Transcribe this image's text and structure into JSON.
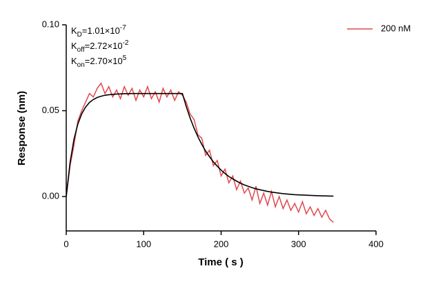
{
  "chart_data": {
    "type": "line",
    "xlabel": "Time ( s )",
    "ylabel": "Response (nm)",
    "annotations": [
      {
        "text": "K",
        "sub": "D",
        "mid": "=1.01×10",
        "sup": "-7"
      },
      {
        "text": "K",
        "sub": "off",
        "mid": "=2.72×10",
        "sup": "-2"
      },
      {
        "text": "K",
        "sub": "on",
        "mid": "=2.70×10",
        "sup": "5"
      }
    ],
    "x": [
      0,
      5,
      10,
      15,
      20,
      25,
      30,
      35,
      40,
      45,
      50,
      55,
      60,
      65,
      70,
      75,
      80,
      85,
      90,
      95,
      100,
      105,
      110,
      115,
      120,
      125,
      130,
      135,
      140,
      145,
      150,
      155,
      160,
      165,
      170,
      175,
      180,
      185,
      190,
      195,
      200,
      205,
      210,
      215,
      220,
      225,
      230,
      235,
      240,
      245,
      250,
      255,
      260,
      265,
      270,
      275,
      280,
      285,
      290,
      295,
      300,
      305,
      310,
      315,
      320,
      325,
      330,
      335,
      340,
      345
    ],
    "series": [
      {
        "name": "200 nM",
        "color": "#e0474c",
        "values": [
          0.0,
          0.018,
          0.03,
          0.044,
          0.05,
          0.055,
          0.06,
          0.058,
          0.063,
          0.066,
          0.06,
          0.064,
          0.058,
          0.062,
          0.057,
          0.064,
          0.059,
          0.063,
          0.056,
          0.062,
          0.058,
          0.064,
          0.057,
          0.061,
          0.055,
          0.063,
          0.058,
          0.062,
          0.056,
          0.061,
          0.059,
          0.055,
          0.048,
          0.045,
          0.036,
          0.034,
          0.024,
          0.027,
          0.018,
          0.021,
          0.012,
          0.016,
          0.008,
          0.012,
          0.004,
          0.009,
          0.002,
          0.005,
          -0.002,
          0.006,
          -0.004,
          0.002,
          -0.005,
          0.003,
          -0.006,
          0.0,
          -0.007,
          -0.002,
          -0.008,
          -0.004,
          -0.009,
          -0.003,
          -0.01,
          -0.006,
          -0.011,
          -0.007,
          -0.012,
          -0.008,
          -0.013,
          -0.015
        ]
      },
      {
        "color": "#000000",
        "values": [
          0,
          0.02,
          0.0334,
          0.0422,
          0.0482,
          0.0521,
          0.0548,
          0.0565,
          0.0577,
          0.0584,
          0.059,
          0.0593,
          0.0595,
          0.0597,
          0.0598,
          0.0599,
          0.0599,
          0.06,
          0.06,
          0.06,
          0.06,
          0.06,
          0.06,
          0.06,
          0.06,
          0.06,
          0.06,
          0.06,
          0.06,
          0.06,
          0.06,
          0.0524,
          0.0457,
          0.0399,
          0.0348,
          0.0304,
          0.0265,
          0.0232,
          0.0202,
          0.0177,
          0.0154,
          0.0134,
          0.0117,
          0.0103,
          0.009,
          0.0078,
          0.0068,
          0.006,
          0.0052,
          0.0045,
          0.004,
          0.0035,
          0.003,
          0.0026,
          0.0023,
          0.002,
          0.0017,
          0.0015,
          0.0013,
          0.0011,
          0.001,
          0.0009,
          0.0008,
          0.0007,
          0.0006,
          0.0005,
          0.0004,
          0.0004,
          0.0003,
          0.0003
        ]
      }
    ],
    "xlim": [
      0,
      400
    ],
    "xticks": [
      0,
      100,
      200,
      300,
      400
    ],
    "ylim": [
      -0.02,
      0.1
    ],
    "yticks": [
      {
        "value": 0.1,
        "label": "0.10"
      },
      0.05,
      {
        "value": 0,
        "label": "0.00"
      }
    ],
    "legend": "upper right"
  }
}
